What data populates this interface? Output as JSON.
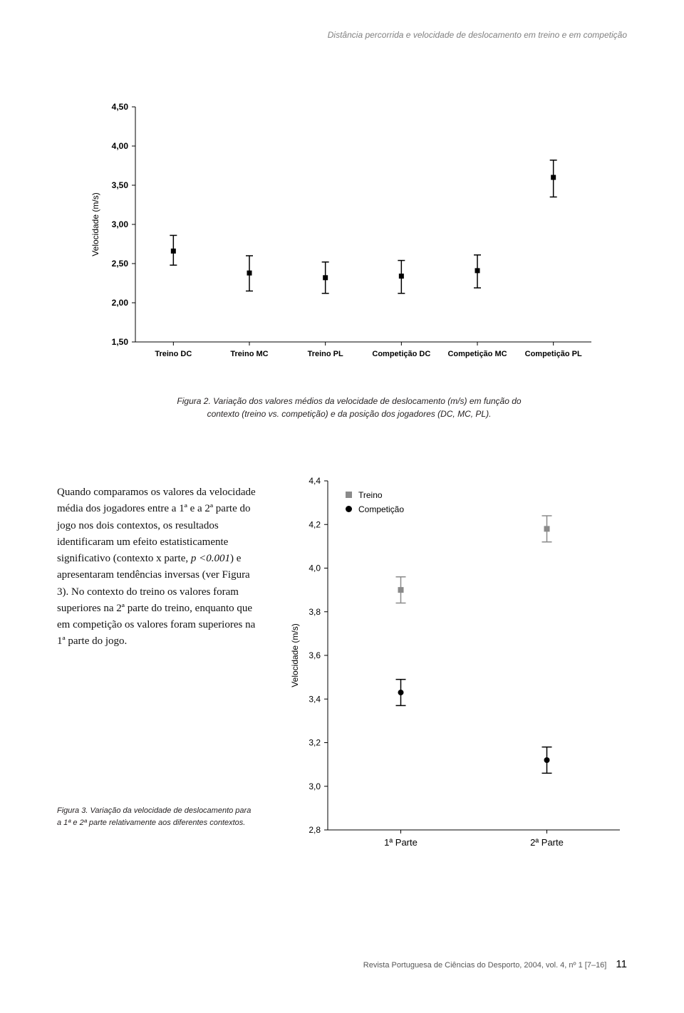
{
  "header": {
    "running_title": "Distância percorrida e velocidade de deslocamento em treino e em competição"
  },
  "figure2": {
    "type": "errorbar",
    "ylabel": "Velocidade (m/s)",
    "label_fontsize": 12,
    "ylim": [
      1.5,
      4.5
    ],
    "ytick_step": 0.5,
    "ytick_labels": [
      "1,50",
      "2,00",
      "2,50",
      "3,00",
      "3,50",
      "4,00",
      "4,50"
    ],
    "categories": [
      "Treino DC",
      "Treino MC",
      "Treino PL",
      "Competição DC",
      "Competição MC",
      "Competição PL"
    ],
    "values": [
      2.66,
      2.38,
      2.32,
      2.34,
      2.41,
      3.6
    ],
    "err_low": [
      0.18,
      0.23,
      0.2,
      0.22,
      0.22,
      0.25
    ],
    "err_high": [
      0.2,
      0.22,
      0.2,
      0.2,
      0.2,
      0.22
    ],
    "marker": "square",
    "marker_size": 7,
    "marker_color": "#000000",
    "errorbar_color": "#000000",
    "cap_width": 10,
    "background_color": "#ffffff",
    "grid": false,
    "caption": "Figura 2. Variação dos valores médios da velocidade de deslocamento (m/s) em função do contexto (treino vs. competição) e da posição dos jogadores (DC, MC, PL)."
  },
  "body": {
    "para": "Quando comparamos os valores da velocidade média dos jogadores entre a 1ª e a 2ª parte do jogo nos dois contextos, os resultados identificaram um efeito estatisticamente significativo (contexto x parte, ",
    "stat": "p <0.001",
    "para2": ") e apresentaram tendências inversas (ver Figura 3). No contexto do treino os valores foram superiores na 2ª parte do treino, enquanto que em competição os valores foram superiores na 1ª parte do jogo."
  },
  "figure3": {
    "type": "errorbar",
    "ylabel": "Velocidade (m/s)",
    "label_fontsize": 12,
    "ylim": [
      2.8,
      4.4
    ],
    "ytick_step": 0.2,
    "ytick_labels": [
      "2,8",
      "3,0",
      "3,2",
      "3,4",
      "3,6",
      "3,8",
      "4,0",
      "4,2",
      "4,4"
    ],
    "categories": [
      "1ª Parte",
      "2ª Parte"
    ],
    "series": [
      {
        "name": "Treino",
        "marker": "square",
        "marker_color": "#8a8a8a",
        "line_color": "#8a8a8a",
        "values": [
          3.9,
          4.18
        ],
        "err": [
          0.06,
          0.06
        ]
      },
      {
        "name": "Competição",
        "marker": "circle",
        "marker_color": "#000000",
        "line_color": "#000000",
        "values": [
          3.43,
          3.12
        ],
        "err": [
          0.06,
          0.06
        ]
      }
    ],
    "legend_position": "upper-left",
    "legend_fontsize": 12,
    "cap_width": 14,
    "marker_size": 8,
    "background_color": "#ffffff",
    "grid": false,
    "caption": "Figura 3. Variação da velocidade de deslocamento para a 1ª e 2ª parte relativamente aos diferentes contextos."
  },
  "footer": {
    "journal": "Revista Portuguesa de Ciências do Desporto, 2004, vol. 4, nº 1 [7–16]",
    "page_number": "11"
  }
}
